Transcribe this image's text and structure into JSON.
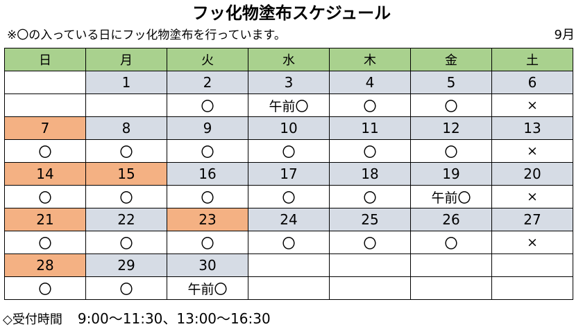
{
  "title": "フッ化物塗布スケジュール",
  "note": "※〇の入っている日にフッ化物塗布を行っています。",
  "month": "9月",
  "weekdays": [
    "日",
    "月",
    "火",
    "水",
    "木",
    "金",
    "土"
  ],
  "weeks": [
    {
      "dates": [
        "",
        "1",
        "2",
        "3",
        "4",
        "5",
        "6"
      ],
      "marks": [
        "",
        "",
        "〇",
        "午前〇",
        "〇",
        "〇",
        "×"
      ]
    },
    {
      "dates": [
        "7",
        "8",
        "9",
        "10",
        "11",
        "12",
        "13"
      ],
      "marks": [
        "〇",
        "〇",
        "〇",
        "〇",
        "〇",
        "〇",
        "×"
      ]
    },
    {
      "dates": [
        "14",
        "15",
        "16",
        "17",
        "18",
        "19",
        "20"
      ],
      "marks": [
        "〇",
        "〇",
        "〇",
        "〇",
        "〇",
        "午前〇",
        "×"
      ]
    },
    {
      "dates": [
        "21",
        "22",
        "23",
        "24",
        "25",
        "26",
        "27"
      ],
      "marks": [
        "〇",
        "〇",
        "〇",
        "〇",
        "〇",
        "〇",
        "×"
      ]
    },
    {
      "dates": [
        "28",
        "29",
        "30",
        "",
        "",
        "",
        ""
      ],
      "marks": [
        "〇",
        "〇",
        "午前〇",
        "",
        "",
        "",
        ""
      ]
    }
  ],
  "holidays": [
    "7",
    "14",
    "15",
    "21",
    "23",
    "28"
  ],
  "colors": {
    "header": "#a9d18e",
    "weekday_date": "#d6dce5",
    "holiday_date": "#f4b183"
  },
  "footer": {
    "label": "◇受付時間",
    "hours": "9:00～11:30、13:00～16:30"
  }
}
